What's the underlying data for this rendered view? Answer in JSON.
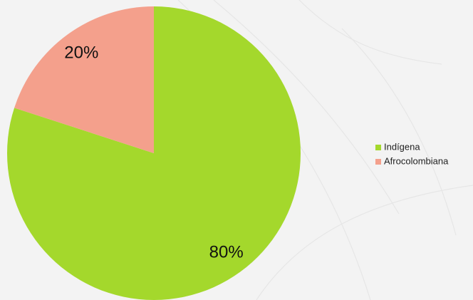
{
  "chart_data": {
    "type": "pie",
    "categories": [
      "Indígena",
      "Afrocolombiana"
    ],
    "values": [
      80,
      20
    ],
    "value_labels": [
      "80%",
      "20%"
    ],
    "colors": [
      "#a4d82c",
      "#f4a08c"
    ],
    "start_angle": 0,
    "direction": "clockwise",
    "legend": "right"
  }
}
